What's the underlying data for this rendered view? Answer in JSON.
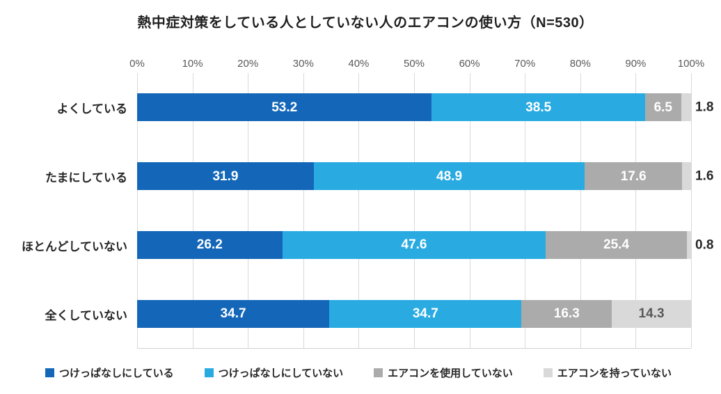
{
  "title": "熱中症対策をしている人としていない人のエアコンの使い方（N=530）",
  "chart_data": {
    "type": "bar",
    "stacked": true,
    "orientation": "horizontal",
    "title": "熱中症対策をしている人としていない人のエアコンの使い方（N=530）",
    "categories": [
      "よくしている",
      "たまにしている",
      "ほとんどしていない",
      "全くしていない"
    ],
    "series": [
      {
        "name": "つけっぱなしにしている",
        "color": "#1467b8",
        "label_color": "#ffffff",
        "values": [
          53.2,
          31.9,
          26.2,
          34.7
        ]
      },
      {
        "name": "つけっぱなしにしていない",
        "color": "#29abe2",
        "label_color": "#ffffff",
        "values": [
          38.5,
          48.9,
          47.6,
          34.7
        ]
      },
      {
        "name": "エアコンを使用していない",
        "color": "#ababab",
        "label_color": "#ffffff",
        "values": [
          6.5,
          17.6,
          25.4,
          16.3
        ]
      },
      {
        "name": "エアコンを持っていない",
        "color": "#d9d9d9",
        "label_color": "#595959",
        "values": [
          1.8,
          1.6,
          0.8,
          14.3
        ]
      }
    ],
    "x_ticks": [
      "0%",
      "10%",
      "20%",
      "30%",
      "40%",
      "50%",
      "60%",
      "70%",
      "80%",
      "90%",
      "100%"
    ],
    "xlim": [
      0,
      100
    ],
    "grid": true,
    "legend_position": "bottom",
    "outside_label_threshold": 3,
    "outside_label_color": "#262626"
  }
}
